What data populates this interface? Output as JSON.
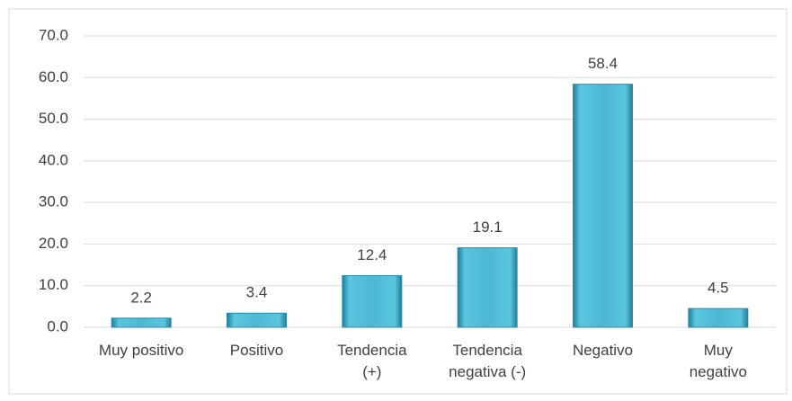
{
  "chart_data": {
    "type": "bar",
    "categories": [
      "Muy positivo",
      "Positivo",
      "Tendencia\n(+)",
      "Tendencia\nnegativa (-)",
      "Negativo",
      "Muy\nnegativo"
    ],
    "values": [
      2.2,
      3.4,
      12.4,
      19.1,
      58.4,
      4.5
    ],
    "color": "#4bb8d4",
    "ylim": [
      0,
      70
    ],
    "yticks": [
      {
        "value": 0,
        "label": "0.0"
      },
      {
        "value": 10,
        "label": "10.0"
      },
      {
        "value": 20,
        "label": "20.0"
      },
      {
        "value": 30,
        "label": "30.0"
      },
      {
        "value": 40,
        "label": "40.0"
      },
      {
        "value": 50,
        "label": "50.0"
      },
      {
        "value": 60,
        "label": "60.0"
      },
      {
        "value": 70,
        "label": "70.0"
      }
    ],
    "grid": true
  }
}
